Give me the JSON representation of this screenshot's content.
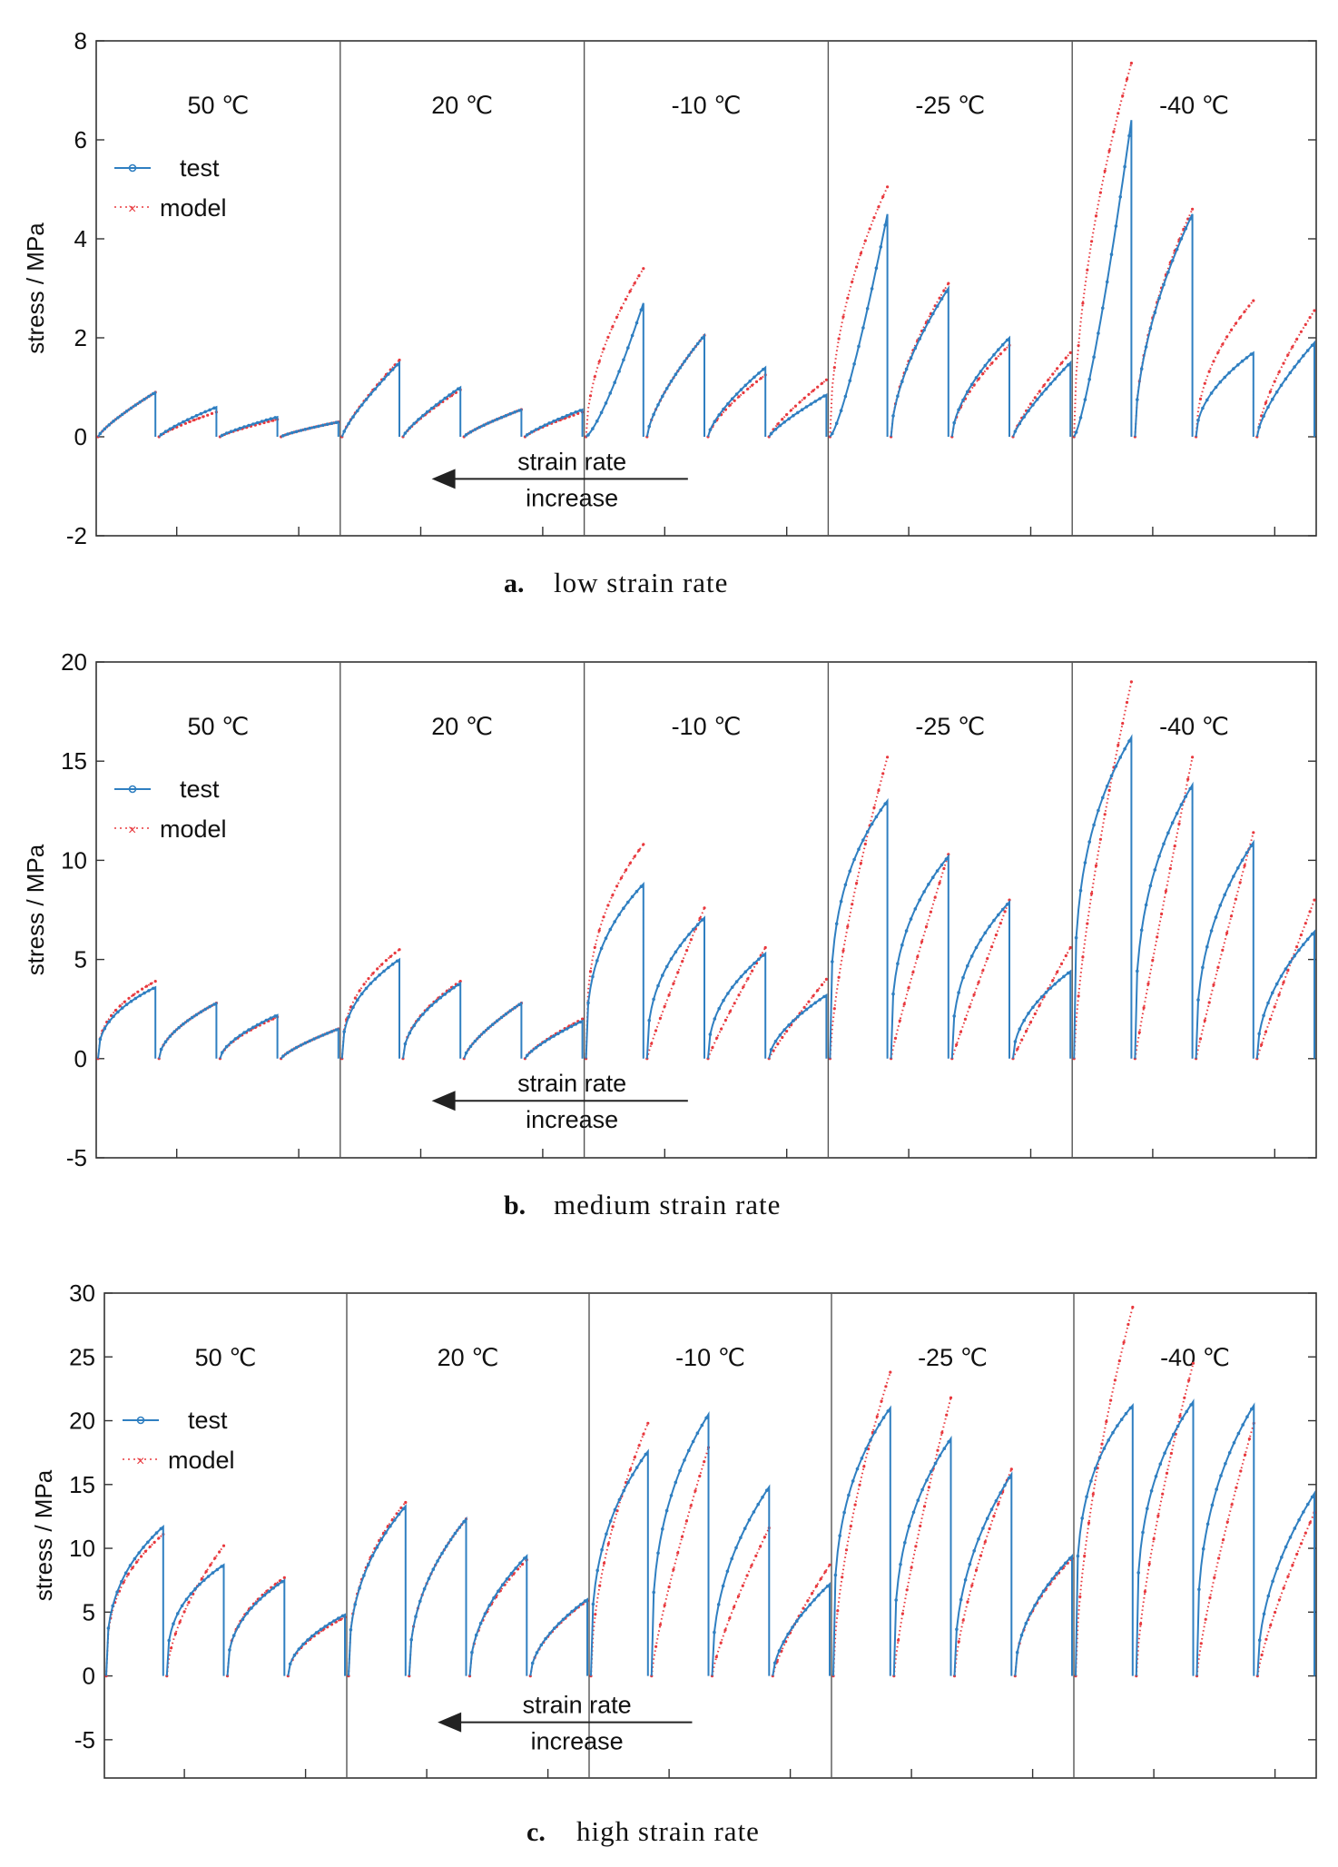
{
  "colors": {
    "test": "#2f7fc1",
    "model": "#e8383d",
    "axis": "#333333",
    "separator": "#555555",
    "arrow": "#222222"
  },
  "legend": {
    "test_label": "test",
    "model_label": "model",
    "placement": "upper-left"
  },
  "arrow": {
    "line1": "strain rate",
    "line2": "increase",
    "direction": "left"
  },
  "chart_data": [
    {
      "type": "line",
      "caption_letter": "a.",
      "caption": "low strain rate",
      "ylabel": "stress / MPa",
      "ylim": [
        -2,
        8
      ],
      "yticks": [
        "8",
        "6",
        "4",
        "2",
        "0",
        "-2"
      ],
      "ytick_values": [
        8,
        6,
        4,
        2,
        0,
        -2
      ],
      "temperatures": [
        "50 ℃",
        "20 ℃",
        "-10 ℃",
        "-25 ℃",
        "-40 ℃"
      ],
      "segments": [
        [
          {
            "test": 0.9,
            "model": 0.9,
            "shape": 0.8
          },
          {
            "test": 0.6,
            "model": 0.5,
            "shape": 0.8
          },
          {
            "test": 0.4,
            "model": 0.35,
            "shape": 0.8
          },
          {
            "test": 0.3,
            "model": 0.3,
            "shape": 0.8
          }
        ],
        [
          {
            "test": 1.5,
            "model": 1.55,
            "shape": 0.8
          },
          {
            "test": 1.0,
            "model": 0.95,
            "shape": 0.8
          },
          {
            "test": 0.55,
            "model": 0.55,
            "shape": 0.8
          },
          {
            "test": 0.55,
            "model": 0.5,
            "shape": 0.8
          }
        ],
        [
          {
            "test": 2.7,
            "model": 3.4,
            "shape": 0.55,
            "tshape": 1.3
          },
          {
            "test": 2.05,
            "model": 2.05,
            "shape": 0.7
          },
          {
            "test": 1.4,
            "model": 1.25,
            "shape": 0.7
          },
          {
            "test": 0.85,
            "model": 1.15,
            "shape": 0.8
          }
        ],
        [
          {
            "test": 4.5,
            "model": 5.05,
            "shape": 0.5,
            "tshape": 1.3
          },
          {
            "test": 3.0,
            "model": 3.1,
            "shape": 0.6
          },
          {
            "test": 2.0,
            "model": 1.85,
            "shape": 0.6
          },
          {
            "test": 1.5,
            "model": 1.7,
            "shape": 0.8
          }
        ],
        [
          {
            "test": 6.4,
            "model": 7.55,
            "shape": 0.55,
            "tshape": 1.3
          },
          {
            "test": 4.5,
            "model": 4.6,
            "shape": 0.55
          },
          {
            "test": 1.7,
            "model": 2.75,
            "shape": 0.5
          },
          {
            "test": 1.9,
            "model": 2.55,
            "shape": 0.7
          }
        ]
      ]
    },
    {
      "type": "line",
      "caption_letter": "b.",
      "caption": "medium strain rate",
      "ylabel": "stress / MPa",
      "ylim": [
        -5,
        20
      ],
      "yticks": [
        "20",
        "15",
        "10",
        "5",
        "0",
        "-5"
      ],
      "ytick_values": [
        20,
        15,
        10,
        5,
        0,
        -5
      ],
      "temperatures": [
        "50 ℃",
        "20 ℃",
        "-10 ℃",
        "-25 ℃",
        "-40 ℃"
      ],
      "segments": [
        [
          {
            "test": 3.6,
            "model": 3.9,
            "shape": 0.4
          },
          {
            "test": 2.8,
            "model": 2.8,
            "shape": 0.55
          },
          {
            "test": 2.2,
            "model": 2.1,
            "shape": 0.6
          },
          {
            "test": 1.5,
            "model": 1.5,
            "shape": 0.75
          }
        ],
        [
          {
            "test": 5.0,
            "model": 5.5,
            "shape": 0.4
          },
          {
            "test": 3.8,
            "model": 3.9,
            "shape": 0.5
          },
          {
            "test": 2.8,
            "model": 2.8,
            "shape": 0.7
          },
          {
            "test": 1.9,
            "model": 2.0,
            "shape": 0.75
          }
        ],
        [
          {
            "test": 8.8,
            "model": 10.8,
            "shape": 0.35
          },
          {
            "test": 7.1,
            "model": 7.6,
            "shape": 0.4,
            "mshape": 0.9
          },
          {
            "test": 5.3,
            "model": 5.6,
            "shape": 0.45,
            "mshape": 0.9
          },
          {
            "test": 3.2,
            "model": 4.0,
            "shape": 0.6,
            "mshape": 0.9
          }
        ],
        [
          {
            "test": 13.0,
            "model": 15.2,
            "shape": 0.3,
            "mshape": 0.7
          },
          {
            "test": 10.2,
            "model": 10.3,
            "shape": 0.35,
            "mshape": 0.9
          },
          {
            "test": 7.9,
            "model": 8.0,
            "shape": 0.4,
            "mshape": 0.95
          },
          {
            "test": 4.4,
            "model": 5.6,
            "shape": 0.5,
            "mshape": 0.95
          }
        ],
        [
          {
            "test": 16.2,
            "model": 19.0,
            "shape": 0.3,
            "mshape": 0.7
          },
          {
            "test": 13.8,
            "model": 15.2,
            "shape": 0.35,
            "mshape": 0.95
          },
          {
            "test": 10.9,
            "model": 11.4,
            "shape": 0.4,
            "mshape": 0.95
          },
          {
            "test": 6.4,
            "model": 8.0,
            "shape": 0.5,
            "mshape": 0.95
          }
        ]
      ]
    },
    {
      "type": "line",
      "caption_letter": "c.",
      "caption": "high strain rate",
      "ylabel": "stress / MPa",
      "ylim": [
        -8,
        30
      ],
      "yticks": [
        "30",
        "25",
        "20",
        "15",
        "10",
        "5",
        "0",
        "-5"
      ],
      "ytick_values": [
        30,
        25,
        20,
        15,
        10,
        5,
        0,
        -5
      ],
      "temperatures": [
        "50 ℃",
        "20 ℃",
        "-10 ℃",
        "-25 ℃",
        "-40 ℃"
      ],
      "segments": [
        [
          {
            "test": 11.7,
            "model": 11.1,
            "shape": 0.35
          },
          {
            "test": 8.7,
            "model": 10.2,
            "shape": 0.35,
            "mshape": 0.6
          },
          {
            "test": 7.5,
            "model": 7.7,
            "shape": 0.4
          },
          {
            "test": 4.8,
            "model": 4.6,
            "shape": 0.5
          }
        ],
        [
          {
            "test": 13.3,
            "model": 13.6,
            "shape": 0.4
          },
          {
            "test": 12.3,
            "model": 12.3,
            "shape": 0.45
          },
          {
            "test": 9.4,
            "model": 9.1,
            "shape": 0.5
          },
          {
            "test": 6.0,
            "model": 5.9,
            "shape": 0.55
          }
        ],
        [
          {
            "test": 17.6,
            "model": 19.8,
            "shape": 0.35,
            "mshape": 0.55
          },
          {
            "test": 20.5,
            "model": 17.9,
            "shape": 0.35,
            "mshape": 0.8
          },
          {
            "test": 14.8,
            "model": 11.6,
            "shape": 0.45,
            "mshape": 0.8
          },
          {
            "test": 7.2,
            "model": 8.7,
            "shape": 0.6,
            "mshape": 0.8
          }
        ],
        [
          {
            "test": 21.0,
            "model": 23.8,
            "shape": 0.3,
            "mshape": 0.6
          },
          {
            "test": 18.6,
            "model": 21.8,
            "shape": 0.35,
            "mshape": 0.8
          },
          {
            "test": 15.8,
            "model": 16.2,
            "shape": 0.45,
            "mshape": 0.7
          },
          {
            "test": 9.4,
            "model": 9.2,
            "shape": 0.5
          }
        ],
        [
          {
            "test": 21.2,
            "model": 28.9,
            "shape": 0.25,
            "mshape": 0.6
          },
          {
            "test": 21.5,
            "model": 24.5,
            "shape": 0.3,
            "mshape": 0.7
          },
          {
            "test": 21.2,
            "model": 19.8,
            "shape": 0.35,
            "mshape": 0.8
          },
          {
            "test": 14.3,
            "model": 12.8,
            "shape": 0.5,
            "mshape": 0.8
          }
        ]
      ]
    }
  ]
}
